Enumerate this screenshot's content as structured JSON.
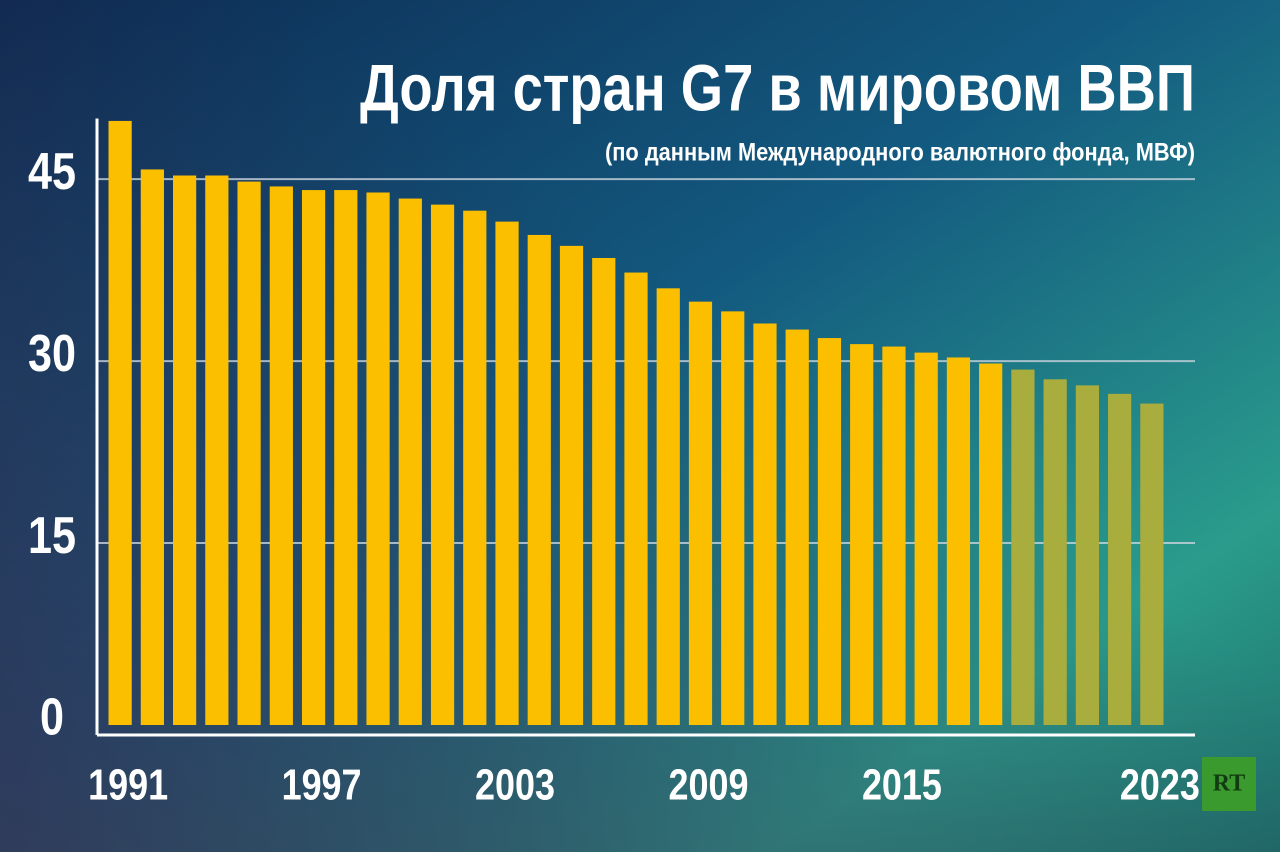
{
  "chart_data": {
    "type": "bar",
    "title": "Доля стран G7 в мировом ВВП",
    "subtitle": "(по данным Международного валютного фонда, МВФ)",
    "categories": [
      "1991",
      null,
      null,
      null,
      null,
      null,
      "1997",
      null,
      null,
      null,
      null,
      null,
      "2003",
      null,
      null,
      null,
      null,
      null,
      "2009",
      null,
      null,
      null,
      null,
      null,
      "2015",
      null,
      null,
      null,
      null,
      null,
      null,
      null,
      "2023"
    ],
    "values": [
      49.8,
      45.8,
      45.3,
      45.3,
      44.8,
      44.4,
      44.1,
      44.1,
      43.9,
      43.4,
      42.9,
      42.4,
      41.5,
      40.4,
      39.5,
      38.5,
      37.3,
      36.0,
      34.9,
      34.1,
      33.1,
      32.6,
      31.9,
      31.4,
      31.2,
      30.7,
      30.3,
      29.8,
      29.3,
      28.5,
      28.0,
      27.3,
      26.5
    ],
    "colors": [
      "#fbbf00",
      "#fbbf00",
      "#fbbf00",
      "#fbbf00",
      "#fbbf00",
      "#fbbf00",
      "#fbbf00",
      "#fbbf00",
      "#fbbf00",
      "#fbbf00",
      "#fbbf00",
      "#fbbf00",
      "#fbbf00",
      "#fbbf00",
      "#fbbf00",
      "#fbbf00",
      "#fbbf00",
      "#fbbf00",
      "#fbbf00",
      "#fbbf00",
      "#fbbf00",
      "#fbbf00",
      "#fbbf00",
      "#fbbf00",
      "#fbbf00",
      "#fbbf00",
      "#fbbf00",
      "#fbbf00",
      "#a9ad3e",
      "#a9ad3e",
      "#a9ad3e",
      "#a9ad3e",
      "#a9ad3e"
    ],
    "ylim": [
      0,
      50
    ],
    "yticks": [
      0,
      15,
      30,
      45
    ],
    "grid": true
  },
  "logo": "RT"
}
